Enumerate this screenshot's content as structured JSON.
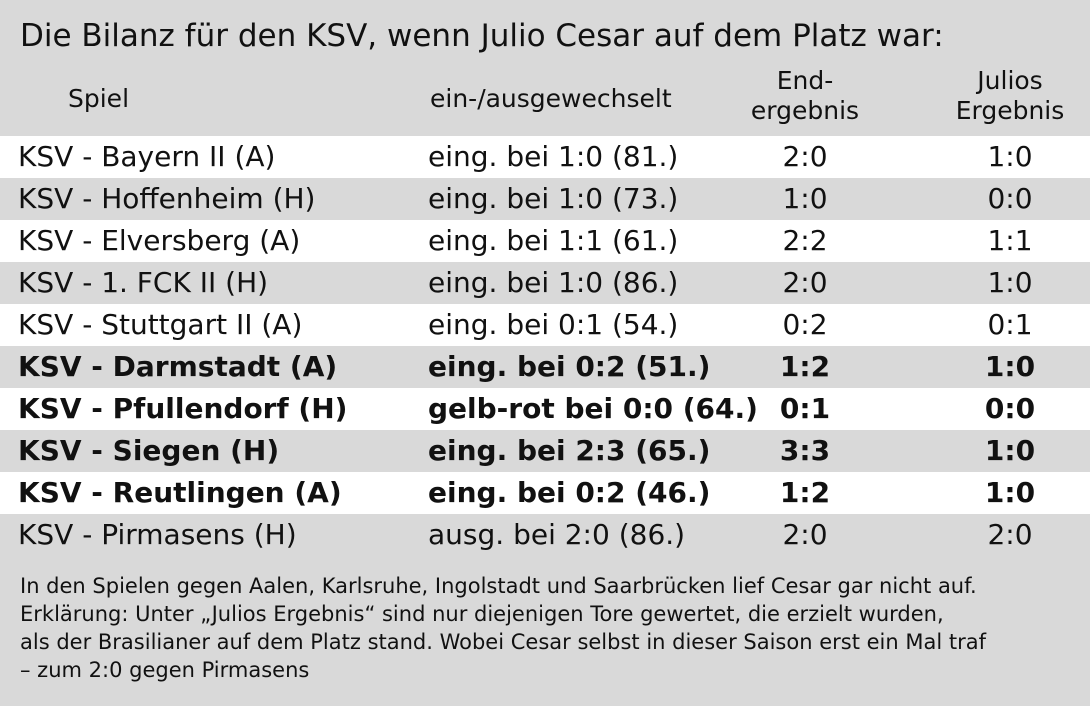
{
  "title": "Die Bilanz für den KSV, wenn Julio Cesar auf dem Platz war:",
  "headers": {
    "spiel": "Spiel",
    "wechsel": "ein-/ausgewechselt",
    "end_line1": "End-",
    "end_line2": "ergebnis",
    "julio_line1": "Julios",
    "julio_line2": "Ergebnis"
  },
  "rows": [
    {
      "spiel": "KSV - Bayern II (A)",
      "wechsel": "eing. bei 1:0 (81.)",
      "end": "2:0",
      "julio": "1:0",
      "bold": false
    },
    {
      "spiel": "KSV - Hoffenheim (H)",
      "wechsel": "eing. bei 1:0 (73.)",
      "end": "1:0",
      "julio": "0:0",
      "bold": false
    },
    {
      "spiel": "KSV - Elversberg (A)",
      "wechsel": "eing. bei 1:1 (61.)",
      "end": "2:2",
      "julio": "1:1",
      "bold": false
    },
    {
      "spiel": "KSV - 1. FCK II (H)",
      "wechsel": "eing. bei 1:0 (86.)",
      "end": "2:0",
      "julio": "1:0",
      "bold": false
    },
    {
      "spiel": "KSV - Stuttgart II (A)",
      "wechsel": "eing. bei 0:1 (54.)",
      "end": "0:2",
      "julio": "0:1",
      "bold": false
    },
    {
      "spiel": "KSV - Darmstadt (A)",
      "wechsel": "eing. bei 0:2 (51.)",
      "end": "1:2",
      "julio": "1:0",
      "bold": true
    },
    {
      "spiel": "KSV - Pfullendorf (H)",
      "wechsel": "gelb-rot bei 0:0 (64.)",
      "end": "0:1",
      "julio": "0:0",
      "bold": true
    },
    {
      "spiel": "KSV - Siegen (H)",
      "wechsel": "eing. bei 2:3 (65.)",
      "end": "3:3",
      "julio": "1:0",
      "bold": true
    },
    {
      "spiel": "KSV - Reutlingen (A)",
      "wechsel": "eing. bei 0:2 (46.)",
      "end": "1:2",
      "julio": "1:0",
      "bold": true
    },
    {
      "spiel": "KSV - Pirmasens (H)",
      "wechsel": "ausg. bei 2:0 (86.)",
      "end": "2:0",
      "julio": "2:0",
      "bold": false
    }
  ],
  "notes": [
    "In den Spielen gegen Aalen, Karlsruhe, Ingolstadt und Saarbrücken lief Cesar gar nicht auf.",
    "Erklärung: Unter „Julios Ergebnis“ sind nur diejenigen Tore gewertet, die erzielt wurden,",
    "als der Brasilianer auf dem Platz stand. Wobei Cesar selbst in dieser Saison erst ein Mal traf",
    "– zum 2:0 gegen Pirmasens"
  ]
}
